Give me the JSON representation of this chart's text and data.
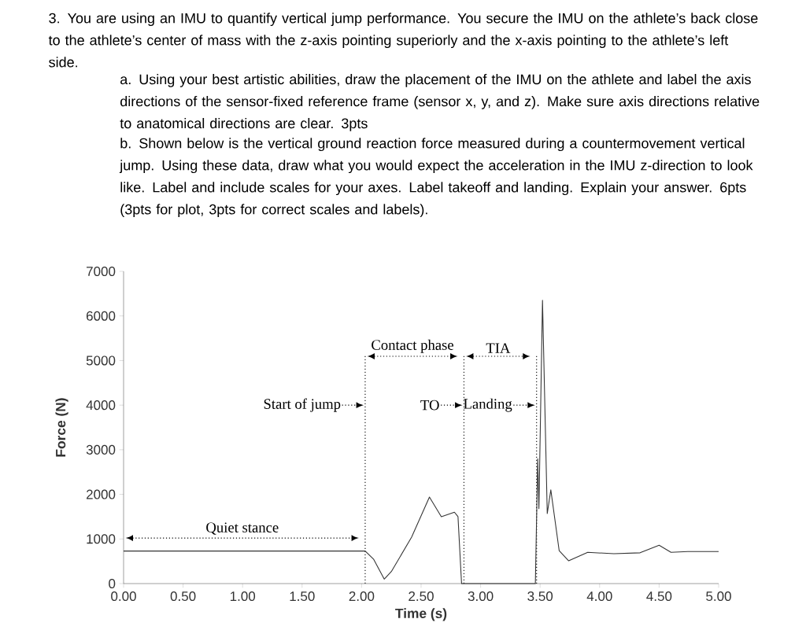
{
  "chart_data": {
    "type": "line",
    "xlabel": "Time (s)",
    "ylabel": "Force (N)",
    "x": [
      0,
      0.5,
      1.0,
      1.5,
      2.03,
      2.1,
      2.19,
      2.25,
      2.42,
      2.57,
      2.67,
      2.78,
      2.81,
      2.84,
      3.0,
      3.2,
      3.46,
      3.48,
      3.49,
      3.52,
      3.56,
      3.59,
      3.66,
      3.74,
      3.9,
      4.12,
      4.34,
      4.5,
      4.6,
      4.74,
      5.0
    ],
    "series": [
      {
        "color": "#333333",
        "values": [
          730,
          730,
          730,
          730,
          730,
          550,
          100,
          270,
          1040,
          1940,
          1500,
          1600,
          1500,
          0,
          0,
          0,
          0,
          2800,
          1680,
          6350,
          1570,
          2100,
          740,
          510,
          700,
          670,
          690,
          860,
          700,
          720,
          720
        ]
      }
    ],
    "xlim": [
      0,
      5
    ],
    "ylim": [
      0,
      7000
    ],
    "xticks": [
      {
        "value": 0,
        "label": "0.00"
      },
      {
        "value": 0.5,
        "label": "0.50"
      },
      {
        "value": 1,
        "label": "1.00"
      },
      {
        "value": 1.5,
        "label": "1.50"
      },
      {
        "value": 2,
        "label": "2.00"
      },
      {
        "value": 2.5,
        "label": "2.50"
      },
      {
        "value": 3,
        "label": "3.00"
      },
      {
        "value": 3.5,
        "label": "3.50"
      },
      {
        "value": 4,
        "label": "4.00"
      },
      {
        "value": 4.5,
        "label": "4.50"
      },
      {
        "value": 5,
        "label": "5.00"
      }
    ],
    "yticks": [
      0,
      1000,
      2000,
      3000,
      4000,
      5000,
      6000,
      7000
    ],
    "ref_lines": [
      {
        "axis": "x",
        "value": 2.03,
        "line_style": "dotted",
        "color": "#333333"
      },
      {
        "axis": "x",
        "value": 2.86,
        "line_style": "dotted",
        "color": "#333333"
      },
      {
        "axis": "x",
        "value": 3.47,
        "line_style": "dotted",
        "color": "#333333"
      }
    ],
    "annotations": [
      "3. You are using an IMU to quantify vertical jump performance. You secure the IMU on the athlete’s back close to the athlete’s center of mass with the z-axis pointing superiorly and the x-axis pointing to the athlete’s left side.",
      "a. Using your best artistic abilities, draw the placement of the IMU on the athlete and label the axis directions of the sensor-fixed reference frame (sensor x, y, and z). Make sure axis directions relative to anatomical directions are clear. 3pts",
      "b. Shown below is the vertical ground reaction force measured during a countermovement vertical jump. Using these data, draw what you would expect the acceleration in the IMU z-direction to look like. Label and include scales for your axes. Label takeoff and landing. Explain your answer. 6pts (3pts for plot, 3pts for correct scales and labels).",
      "Quiet stance",
      "Contact phase",
      "TIA",
      {
        "text": "Start of jump",
        "x": 2.03,
        "y": 4000
      },
      {
        "text": "TO",
        "x": 2.86,
        "y": 4000
      },
      {
        "text": "Landing",
        "x": 3.47,
        "y": 4000
      }
    ]
  }
}
